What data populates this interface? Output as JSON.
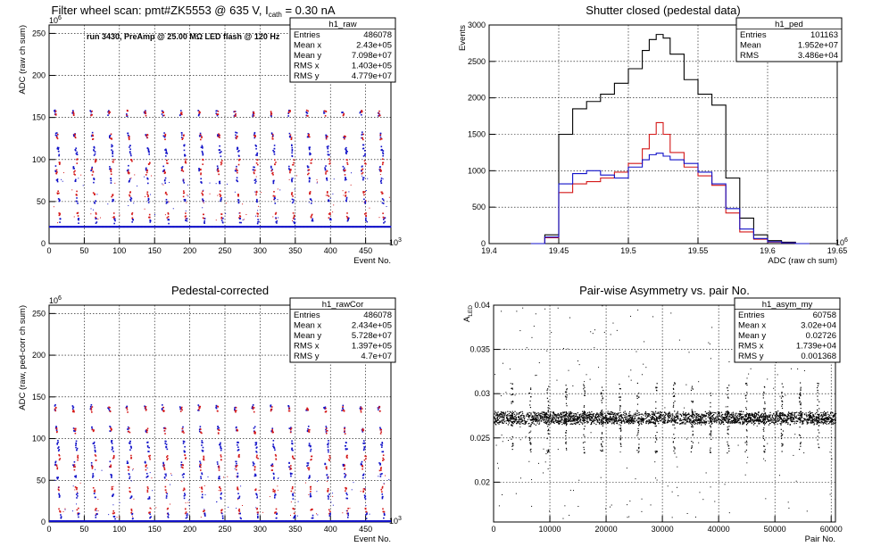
{
  "colors": {
    "blue": "#1010c8",
    "red": "#d41818",
    "black": "#000000"
  },
  "chart_data": [
    {
      "id": "raw",
      "type": "scatter",
      "title": "Filter wheel scan: pmt#ZK5553 @   635 V, I",
      "title_sub": "cath",
      "title_tail": " = 0.30 nA",
      "annotation": "run 3430, PreAmp @ 25.00 MΩ LED flash @  120 Hz",
      "xlabel": "Event No.",
      "ylabel": "ADC (raw ch sum)",
      "xexp": "10",
      "xexp_pow": "3",
      "yexp": "10",
      "yexp_pow": "6",
      "xlim": [
        0,
        486
      ],
      "ylim": [
        0,
        260
      ],
      "xticks": [
        0,
        50,
        100,
        150,
        200,
        250,
        300,
        350,
        400,
        450
      ],
      "yticks": [
        0,
        50,
        100,
        150,
        200,
        250
      ],
      "baseline": 20,
      "steps": [
        {
          "level": 156,
          "color": "blue"
        },
        {
          "level": 156,
          "color": "red"
        },
        {
          "level": 130,
          "color": "blue"
        },
        {
          "level": 128,
          "color": "red"
        },
        {
          "level": 115,
          "color": "blue"
        },
        {
          "level": 108,
          "color": "blue"
        },
        {
          "level": 98,
          "color": "red"
        },
        {
          "level": 90,
          "color": "blue"
        },
        {
          "level": 86,
          "color": "red"
        },
        {
          "level": 76,
          "color": "blue"
        },
        {
          "level": 60,
          "color": "red"
        },
        {
          "level": 52,
          "color": "blue"
        },
        {
          "level": 34,
          "color": "red"
        },
        {
          "level": 28,
          "color": "blue"
        }
      ],
      "cycles": 19,
      "stats": {
        "name": "h1_raw",
        "rows": [
          [
            "Entries",
            "486078"
          ],
          [
            "Mean x",
            "2.43e+05"
          ],
          [
            "Mean y",
            "7.098e+07"
          ],
          [
            "RMS x",
            "1.403e+05"
          ],
          [
            "RMS y",
            "4.779e+07"
          ]
        ]
      }
    },
    {
      "id": "ped",
      "type": "line",
      "title": "Shutter closed (pedestal data)",
      "xlabel": "ADC (raw ch sum)",
      "ylabel": "Events",
      "xexp": "10",
      "xexp_pow": "6",
      "xlim": [
        19.4,
        19.65
      ],
      "ylim": [
        0,
        3000
      ],
      "xticks": [
        19.4,
        19.45,
        19.5,
        19.55,
        19.6,
        19.65
      ],
      "xtick_labels": [
        "19.4",
        "19.45",
        "19.5",
        "19.55",
        "19.6",
        "19.65"
      ],
      "yticks": [
        0,
        500,
        1000,
        1500,
        2000,
        2500,
        3000
      ],
      "x": [
        19.43,
        19.44,
        19.45,
        19.46,
        19.47,
        19.48,
        19.49,
        19.5,
        19.51,
        19.515,
        19.52,
        19.525,
        19.53,
        19.54,
        19.55,
        19.56,
        19.57,
        19.58,
        19.59,
        19.6,
        19.61,
        19.62
      ],
      "series": [
        {
          "color": "black",
          "values": [
            0,
            120,
            1500,
            1850,
            1950,
            2050,
            2200,
            2400,
            2650,
            2800,
            2870,
            2820,
            2600,
            2250,
            2050,
            1900,
            900,
            350,
            120,
            40,
            20,
            0
          ]
        },
        {
          "color": "red",
          "values": [
            0,
            80,
            700,
            820,
            850,
            900,
            980,
            1100,
            1300,
            1500,
            1660,
            1500,
            1250,
            1050,
            930,
            800,
            420,
            160,
            60,
            20,
            10,
            0
          ]
        },
        {
          "color": "blue",
          "values": [
            0,
            90,
            820,
            960,
            1000,
            940,
            900,
            1050,
            1150,
            1220,
            1240,
            1200,
            1150,
            1100,
            980,
            820,
            480,
            200,
            70,
            25,
            10,
            0
          ]
        }
      ],
      "stats": {
        "name": "h1_ped",
        "rows": [
          [
            "Entries",
            "101163"
          ],
          [
            "Mean",
            "1.952e+07"
          ],
          [
            "RMS",
            "3.486e+04"
          ]
        ]
      }
    },
    {
      "id": "rawcor",
      "type": "scatter",
      "title": "Pedestal-corrected",
      "xlabel": "Event No.",
      "ylabel": "ADC (raw, ped-corr ch sum)",
      "xexp": "10",
      "xexp_pow": "3",
      "yexp": "10",
      "yexp_pow": "6",
      "xlim": [
        0,
        486
      ],
      "ylim": [
        0,
        260
      ],
      "xticks": [
        0,
        50,
        100,
        150,
        200,
        250,
        300,
        350,
        400,
        450
      ],
      "yticks": [
        0,
        50,
        100,
        150,
        200,
        250
      ],
      "baseline": 1,
      "steps": [
        {
          "level": 138,
          "color": "blue"
        },
        {
          "level": 136,
          "color": "red"
        },
        {
          "level": 112,
          "color": "blue"
        },
        {
          "level": 110,
          "color": "red"
        },
        {
          "level": 95,
          "color": "blue"
        },
        {
          "level": 88,
          "color": "blue"
        },
        {
          "level": 78,
          "color": "red"
        },
        {
          "level": 70,
          "color": "blue"
        },
        {
          "level": 66,
          "color": "red"
        },
        {
          "level": 56,
          "color": "blue"
        },
        {
          "level": 40,
          "color": "red"
        },
        {
          "level": 32,
          "color": "blue"
        },
        {
          "level": 14,
          "color": "red"
        },
        {
          "level": 8,
          "color": "blue"
        }
      ],
      "cycles": 19,
      "stats": {
        "name": "h1_rawCor",
        "rows": [
          [
            "Entries",
            "486078"
          ],
          [
            "Mean x",
            "2.434e+05"
          ],
          [
            "Mean y",
            "5.728e+07"
          ],
          [
            "RMS x",
            "1.397e+05"
          ],
          [
            "RMS y",
            "4.7e+07"
          ]
        ]
      }
    },
    {
      "id": "asym",
      "type": "scatter",
      "title": "Pair-wise Asymmetry vs. pair No.",
      "xlabel": "Pair No.",
      "ylabel": "A",
      "ylabel_sub": "LED",
      "xlim": [
        0,
        60758
      ],
      "ylim": [
        0.0155,
        0.04
      ],
      "xticks": [
        0,
        10000,
        20000,
        30000,
        40000,
        50000,
        60000
      ],
      "yticks": [
        0.02,
        0.025,
        0.03,
        0.035,
        0.04
      ],
      "ytick_labels": [
        "0.02",
        "0.025",
        "0.03",
        "0.035",
        "0.04"
      ],
      "band_center": 0.0273,
      "band_halfwidth": 0.0006,
      "spike_pairs": [
        3200,
        6400,
        9600,
        12800,
        16000,
        19200,
        22400,
        25600,
        28800,
        32000,
        35200,
        38400,
        41600,
        44800,
        48000,
        51200,
        54400,
        57600
      ],
      "stats": {
        "name": "h1_asym_my",
        "rows": [
          [
            "Entries",
            "60758"
          ],
          [
            "Mean x",
            "3.02e+04"
          ],
          [
            "Mean y",
            "0.02726"
          ],
          [
            "RMS x",
            "1.739e+04"
          ],
          [
            "RMS y",
            "0.001368"
          ]
        ]
      }
    }
  ]
}
